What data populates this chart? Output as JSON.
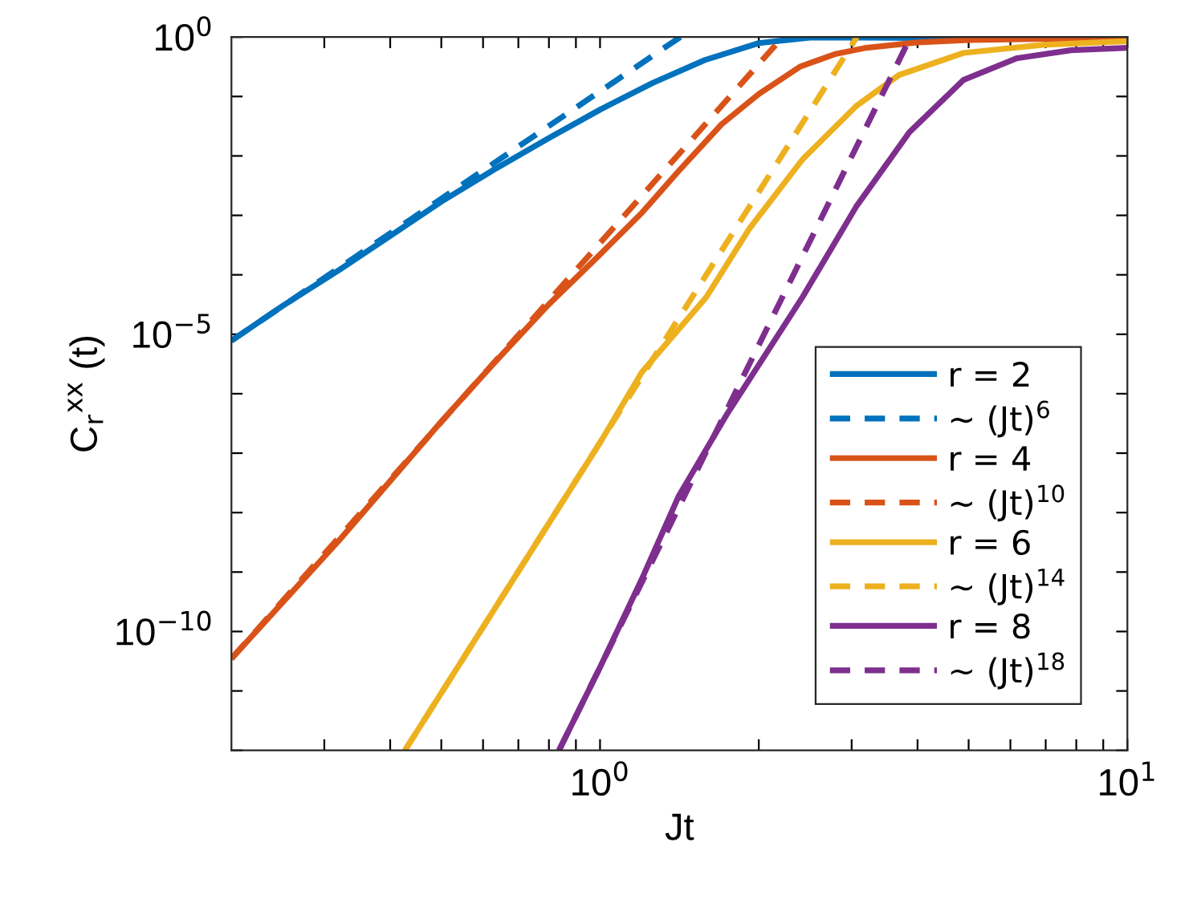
{
  "chart_data": {
    "type": "line",
    "xlabel": "Jt",
    "ylabel": "C$_{r}$$^{xx}$ (t)",
    "log": "xy",
    "grid": false,
    "legend": "bottom right",
    "marker": "none",
    "xlim": [
      0.2,
      10
    ],
    "ylim": [
      1e-12,
      1
    ],
    "xticks": [
      {
        "value": 0.3,
        "label": null
      },
      {
        "value": 0.4,
        "label": null
      },
      {
        "value": 0.5,
        "label": null
      },
      {
        "value": 0.6,
        "label": null
      },
      {
        "value": 0.7,
        "label": null
      },
      {
        "value": 0.8,
        "label": null
      },
      {
        "value": 0.9,
        "label": null
      },
      {
        "value": 1,
        "label": "10$^{0}$"
      },
      {
        "value": 2,
        "label": null
      },
      {
        "value": 3,
        "label": null
      },
      {
        "value": 4,
        "label": null
      },
      {
        "value": 5,
        "label": null
      },
      {
        "value": 6,
        "label": null
      },
      {
        "value": 7,
        "label": null
      },
      {
        "value": 8,
        "label": null
      },
      {
        "value": 9,
        "label": null
      },
      {
        "value": 10,
        "label": "10$^{1}$"
      }
    ],
    "yticks": [
      {
        "value": 1e-12,
        "label": null
      },
      {
        "value": 1e-11,
        "label": null
      },
      {
        "value": 1e-10,
        "label": "10$^{−10}$"
      },
      {
        "value": 1e-09,
        "label": null
      },
      {
        "value": 1e-08,
        "label": null
      },
      {
        "value": 1e-07,
        "label": null
      },
      {
        "value": 1e-06,
        "label": null
      },
      {
        "value": 1e-05,
        "label": "10$^{−5}$"
      },
      {
        "value": 0.0001,
        "label": null
      },
      {
        "value": 0.001,
        "label": null
      },
      {
        "value": 0.01,
        "label": null
      },
      {
        "value": 0.1,
        "label": null
      },
      {
        "value": 1,
        "label": "10$^{0}$"
      }
    ],
    "series": [
      {
        "name": "r = 2",
        "color": "#0072bd",
        "line_style": "solid",
        "x": [
          0.2,
          0.25,
          0.32,
          0.4,
          0.5,
          0.63,
          0.8,
          1,
          1.26,
          1.58,
          2,
          2.5,
          3.2,
          5,
          10
        ],
        "values": [
          7.8e-06,
          3e-05,
          0.00012,
          0.00045,
          0.0017,
          0.0059,
          0.02,
          0.06,
          0.17,
          0.41,
          0.79,
          0.98,
          0.98,
          0.95,
          0.95
        ]
      },
      {
        "name": "∼ (Jt)$^{6}$",
        "color": "#0072bd",
        "line_style": "dashed",
        "x": [
          0.2,
          1.42
        ],
        "values": [
          7.8e-06,
          1
        ]
      },
      {
        "name": "r = 4",
        "color": "#d95319",
        "line_style": "solid",
        "x": [
          0.2,
          0.32,
          0.5,
          0.63,
          0.8,
          1,
          1.2,
          1.41,
          1.7,
          2,
          2.4,
          2.8,
          3.2,
          4,
          5,
          7,
          10
        ],
        "values": [
          3.5e-11,
          3.4e-09,
          3.4e-07,
          3.3e-06,
          3.2e-05,
          0.00022,
          0.0011,
          0.0056,
          0.034,
          0.11,
          0.32,
          0.52,
          0.66,
          0.81,
          0.89,
          0.93,
          0.95
        ]
      },
      {
        "name": "∼ (Jt)$^{10}$",
        "color": "#d95319",
        "line_style": "dashed",
        "x": [
          0.2,
          2.22
        ],
        "values": [
          3.5e-11,
          1
        ]
      },
      {
        "name": "r = 6",
        "color": "#edb120",
        "line_style": "solid",
        "x": [
          0.4266,
          0.631,
          1,
          1.2,
          1.59,
          1.92,
          2.42,
          3.06,
          3.69,
          4.89,
          6.93,
          10
        ],
        "values": [
          1e-12,
          2.4e-10,
          1.5e-07,
          2.3e-06,
          4.2e-05,
          0.0006,
          0.0087,
          0.069,
          0.23,
          0.54,
          0.74,
          0.85
        ]
      },
      {
        "name": "∼ (Jt)$^{14}$",
        "color": "#edb120",
        "line_style": "dashed",
        "x": [
          0.4266,
          3.07
        ],
        "values": [
          1e-12,
          1
        ]
      },
      {
        "name": "r = 8",
        "color": "#7e2f8e",
        "line_style": "solid",
        "x": [
          0.836,
          1,
          1.2,
          1.41,
          1.74,
          2.42,
          3.06,
          3.86,
          4.89,
          6.17,
          7.82,
          10
        ],
        "values": [
          1e-12,
          2.5e-11,
          7.6e-10,
          1.9e-08,
          4.5e-07,
          4.2e-05,
          0.0014,
          0.025,
          0.19,
          0.44,
          0.6,
          0.66
        ]
      },
      {
        "name": "∼ (Jt)$^{18}$",
        "color": "#7e2f8e",
        "line_style": "dashed",
        "x": [
          0.836,
          3.88
        ],
        "values": [
          1e-12,
          1
        ]
      }
    ]
  }
}
